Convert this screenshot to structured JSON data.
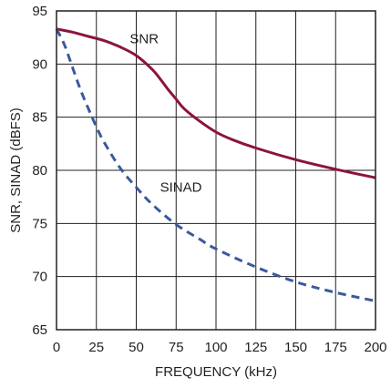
{
  "chart_data": {
    "type": "line",
    "title": "",
    "xlabel": "FREQUENCY (kHz)",
    "ylabel": "SNR, SINAD (dBFS)",
    "xlim": [
      0,
      200
    ],
    "ylim": [
      65,
      95
    ],
    "xticks": [
      0,
      25,
      50,
      75,
      100,
      125,
      150,
      175,
      200
    ],
    "yticks": [
      65,
      70,
      75,
      80,
      85,
      90,
      95
    ],
    "xtick_labels": [
      "0",
      "25",
      "50",
      "75",
      "100",
      "125",
      "150",
      "175",
      "200"
    ],
    "ytick_labels": [
      "65",
      "70",
      "75",
      "80",
      "85",
      "90",
      "95"
    ],
    "grid": true,
    "legend": "none",
    "series": [
      {
        "name": "SNR",
        "color": "#8b1538",
        "style": "solid",
        "x": [
          0,
          10,
          20,
          30,
          40,
          50,
          60,
          65,
          70,
          75,
          80,
          90,
          100,
          110,
          125,
          150,
          175,
          200
        ],
        "y": [
          93.3,
          93.0,
          92.6,
          92.2,
          91.6,
          90.8,
          89.5,
          88.6,
          87.6,
          86.7,
          85.8,
          84.6,
          83.6,
          82.9,
          82.1,
          81.0,
          80.1,
          79.3
        ]
      },
      {
        "name": "SINAD",
        "color": "#3a5a9e",
        "style": "dashed",
        "x": [
          0,
          5,
          10,
          15,
          20,
          25,
          30,
          40,
          50,
          60,
          75,
          90,
          100,
          125,
          150,
          175,
          200
        ],
        "y": [
          93.3,
          91.8,
          89.7,
          87.6,
          85.8,
          84.1,
          82.6,
          80.2,
          78.4,
          76.8,
          74.9,
          73.5,
          72.6,
          70.9,
          69.5,
          68.5,
          67.7
        ]
      }
    ],
    "annotations": [
      {
        "text": "SNR",
        "x": 55,
        "y": 92.4
      },
      {
        "text": "SINAD",
        "x": 78,
        "y": 78.4
      }
    ]
  }
}
